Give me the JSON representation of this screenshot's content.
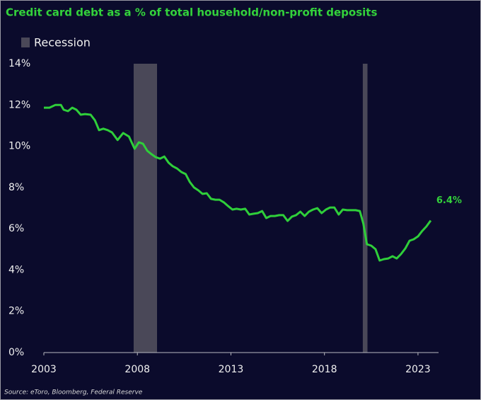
{
  "chart_data": {
    "type": "line",
    "title": "Credit card debt as a % of total household/non-profit deposits",
    "source": "Source: eToro, Bloomberg, Federal Reserve",
    "legend_label": "Recession",
    "annotation": "6.4%",
    "recession_color": "#4a4858",
    "recessions": [
      [
        2007.8,
        2009.05
      ],
      [
        2020.05,
        2020.3
      ]
    ],
    "xlim": [
      2003,
      2024.1
    ],
    "xticks": [
      2003,
      2008,
      2013,
      2018,
      2023
    ],
    "ylim": [
      0,
      14
    ],
    "yticks": [
      {
        "value": 0,
        "label": "0%"
      },
      {
        "value": 2,
        "label": "2%"
      },
      {
        "value": 4,
        "label": "4%"
      },
      {
        "value": 6,
        "label": "6%"
      },
      {
        "value": 8,
        "label": "8%"
      },
      {
        "value": 10,
        "label": "10%"
      },
      {
        "value": 12,
        "label": "12%"
      },
      {
        "value": 14,
        "label": "14%"
      }
    ],
    "x": [
      2003.0,
      2003.3,
      2003.61,
      2003.91,
      2004.06,
      2004.29,
      2004.52,
      2004.74,
      2004.97,
      2005.2,
      2005.5,
      2005.73,
      2005.95,
      2006.18,
      2006.41,
      2006.64,
      2006.94,
      2007.24,
      2007.55,
      2007.85,
      2008.08,
      2008.3,
      2008.53,
      2008.76,
      2008.98,
      2009.21,
      2009.44,
      2009.67,
      2009.89,
      2010.12,
      2010.35,
      2010.58,
      2010.8,
      2011.03,
      2011.26,
      2011.48,
      2011.71,
      2011.94,
      2012.17,
      2012.39,
      2012.62,
      2012.85,
      2013.08,
      2013.3,
      2013.53,
      2013.76,
      2013.98,
      2014.21,
      2014.44,
      2014.67,
      2014.89,
      2015.12,
      2015.35,
      2015.58,
      2015.8,
      2016.03,
      2016.26,
      2016.48,
      2016.71,
      2016.94,
      2017.17,
      2017.39,
      2017.62,
      2017.85,
      2018.08,
      2018.3,
      2018.53,
      2018.76,
      2018.98,
      2019.21,
      2019.44,
      2019.67,
      2019.89,
      2020.08,
      2020.27,
      2020.5,
      2020.73,
      2020.95,
      2021.18,
      2021.41,
      2021.64,
      2021.86,
      2022.09,
      2022.32,
      2022.55,
      2022.77,
      2023.0,
      2023.23,
      2023.45,
      2023.68
    ],
    "series": [
      {
        "name": "Credit card debt as a % of deposits",
        "color": "#2fcf3a",
        "values": [
          11.87,
          11.87,
          12.0,
          12.0,
          11.77,
          11.7,
          11.87,
          11.77,
          11.53,
          11.56,
          11.53,
          11.26,
          10.78,
          10.85,
          10.78,
          10.67,
          10.3,
          10.64,
          10.47,
          9.88,
          10.19,
          10.12,
          9.78,
          9.61,
          9.47,
          9.4,
          9.5,
          9.2,
          9.03,
          8.92,
          8.75,
          8.65,
          8.27,
          8.0,
          7.86,
          7.69,
          7.72,
          7.45,
          7.41,
          7.41,
          7.28,
          7.1,
          6.93,
          6.97,
          6.93,
          6.97,
          6.69,
          6.73,
          6.76,
          6.86,
          6.52,
          6.62,
          6.62,
          6.66,
          6.66,
          6.38,
          6.59,
          6.66,
          6.83,
          6.62,
          6.83,
          6.93,
          7.0,
          6.76,
          6.93,
          7.03,
          7.03,
          6.69,
          6.93,
          6.9,
          6.9,
          6.9,
          6.86,
          6.25,
          5.25,
          5.18,
          5.01,
          4.46,
          4.53,
          4.56,
          4.67,
          4.56,
          4.77,
          5.04,
          5.42,
          5.49,
          5.63,
          5.9,
          6.11,
          6.4
        ]
      }
    ]
  }
}
